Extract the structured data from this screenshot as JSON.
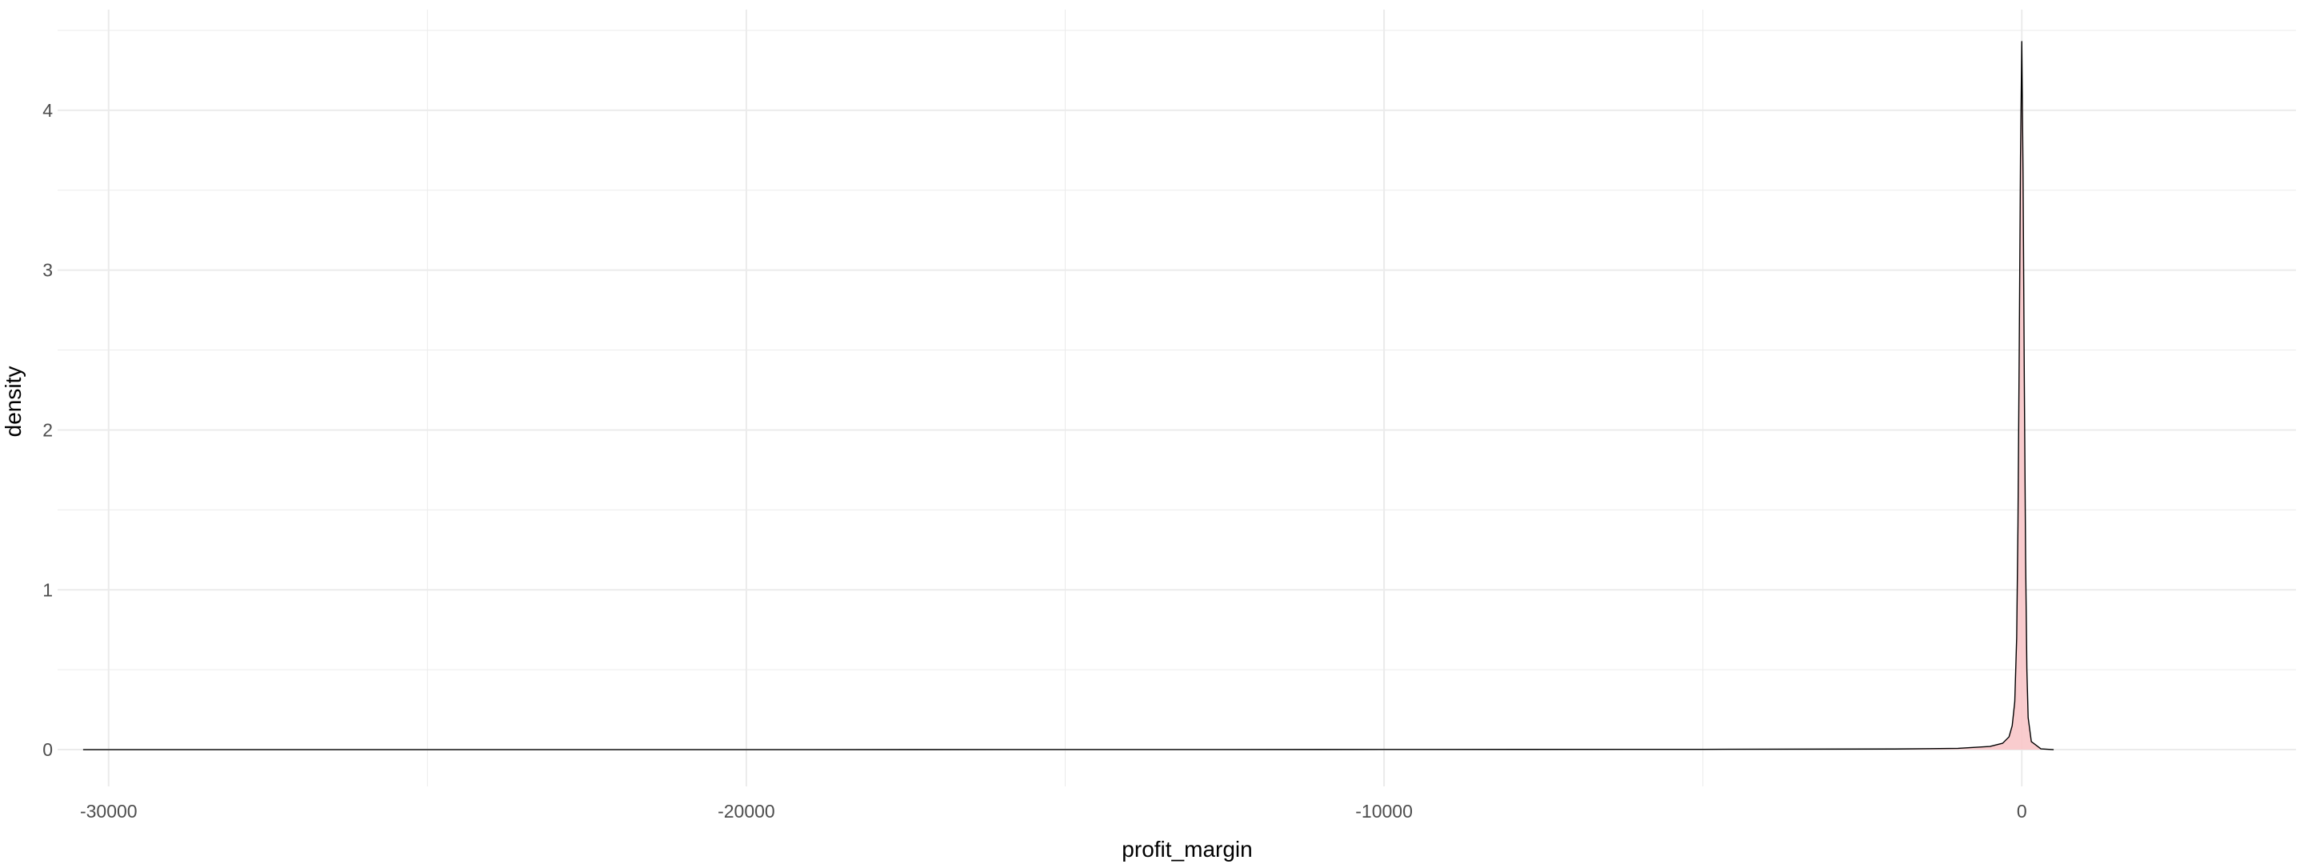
{
  "chart_data": {
    "type": "area",
    "title": "",
    "xlabel": "profit_margin",
    "ylabel": "density",
    "xlim": [
      -30800,
      4300
    ],
    "ylim": [
      -0.23,
      4.63
    ],
    "x_ticks": [
      -30000,
      -20000,
      -10000,
      0
    ],
    "x_tick_labels": [
      "-30000",
      "-20000",
      "-10000",
      "0"
    ],
    "x_minor_ticks": [
      -25000,
      -15000,
      -5000
    ],
    "y_ticks": [
      0,
      1,
      2,
      3,
      4
    ],
    "y_tick_labels": [
      "0",
      "1",
      "2",
      "3",
      "4"
    ],
    "y_minor_ticks": [
      0.5,
      1.5,
      2.5,
      3.5,
      4.5
    ],
    "grid": true,
    "legend": "none",
    "series": [
      {
        "x": [
          -30400,
          -20000,
          -10000,
          -5000,
          -2000,
          -1000,
          -500,
          -300,
          -200,
          -150,
          -110,
          -80,
          -60,
          -40,
          -20,
          0,
          20,
          40,
          60,
          80,
          100,
          150,
          300,
          500
        ],
        "y": [
          0,
          0,
          0.001,
          0.002,
          0.004,
          0.008,
          0.02,
          0.04,
          0.08,
          0.15,
          0.3,
          0.7,
          1.4,
          2.5,
          3.7,
          4.43,
          3.6,
          2.3,
          1.2,
          0.5,
          0.2,
          0.05,
          0.005,
          0
        ]
      }
    ],
    "fill_color": "#f8c7c9",
    "line_color": "#000000",
    "grid_color": "#ebebeb"
  }
}
